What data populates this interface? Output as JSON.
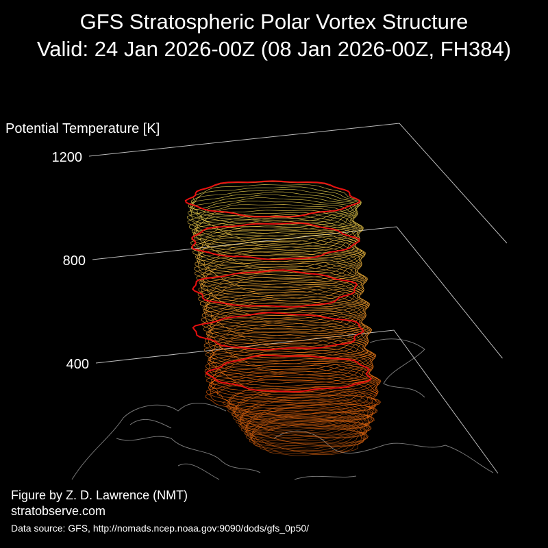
{
  "chart_data": {
    "type": "vortex3d",
    "title": "GFS Stratospheric Polar Vortex Structure",
    "subtitle": "Valid: 24 Jan 2026-00Z  (08 Jan 2026-00Z, FH384)",
    "zlabel": "Potential Temperature [K]",
    "zlim": [
      400,
      1200
    ],
    "zticks": [
      400,
      800,
      1200
    ],
    "credits": [
      "Figure by Z. D. Lawrence (NMT)",
      "stratobserve.com"
    ],
    "source": "Data source: GFS, http://nomads.ncep.noaa.gov:9090/dods/gfs_0p50/"
  }
}
